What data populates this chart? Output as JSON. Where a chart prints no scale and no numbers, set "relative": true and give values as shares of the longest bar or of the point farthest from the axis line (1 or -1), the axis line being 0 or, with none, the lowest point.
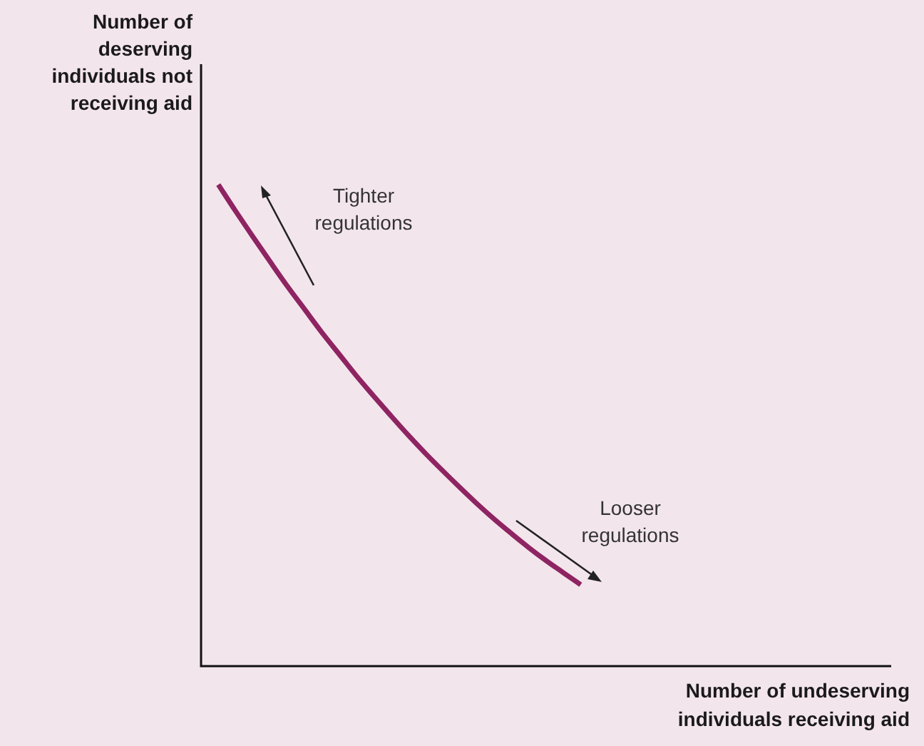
{
  "chart_data": {
    "type": "line",
    "relative": true,
    "xlabel": "Number of undeserving individuals receiving aid",
    "ylabel": "Number of deserving individuals not receiving aid",
    "annotations": [
      "Tighter regulations",
      "Looser regulations"
    ],
    "categories": [
      null,
      null,
      null,
      null,
      null,
      null,
      null,
      null,
      null,
      null,
      null,
      null,
      null,
      null,
      null,
      null,
      null,
      null,
      null,
      null,
      null,
      null,
      null,
      null,
      null,
      null,
      null,
      null,
      null,
      null,
      null,
      null,
      null,
      null,
      null,
      null,
      null,
      null,
      null,
      null,
      null
    ],
    "series": [
      {
        "color": "#8e2462",
        "values": [
          null,
          1.0,
          0.945,
          0.892,
          0.84,
          0.789,
          0.741,
          0.693,
          0.648,
          0.603,
          0.561,
          0.52,
          0.48,
          0.442,
          0.406,
          0.371,
          0.337,
          0.305,
          0.275,
          0.246,
          0.219,
          0.194,
          0.169,
          null,
          null,
          null,
          null,
          null,
          null,
          null,
          null,
          null,
          null,
          null,
          null,
          null,
          null,
          null,
          null,
          null,
          null
        ]
      }
    ],
    "marker": "none",
    "legend": false
  }
}
